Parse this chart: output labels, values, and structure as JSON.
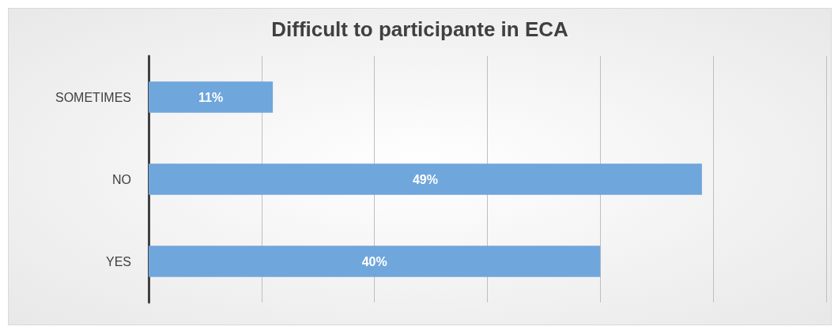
{
  "chart_data": {
    "type": "bar",
    "orientation": "horizontal",
    "title": "Difficult to participante in ECA",
    "categories": [
      "SOMETIMES",
      "NO",
      "YES"
    ],
    "values": [
      11,
      49,
      40
    ],
    "value_labels": [
      "11%",
      "49%",
      "40%"
    ],
    "color": "#6fa6dc",
    "xlim": [
      0,
      60
    ],
    "xticks": [
      {
        "value": 0,
        "label": null
      },
      {
        "value": 10,
        "label": null
      },
      {
        "value": 20,
        "label": null
      },
      {
        "value": 30,
        "label": null
      },
      {
        "value": 40,
        "label": null
      },
      {
        "value": 50,
        "label": null
      },
      {
        "value": 60,
        "label": null
      }
    ],
    "grid": "x",
    "tick_labels": "y"
  }
}
